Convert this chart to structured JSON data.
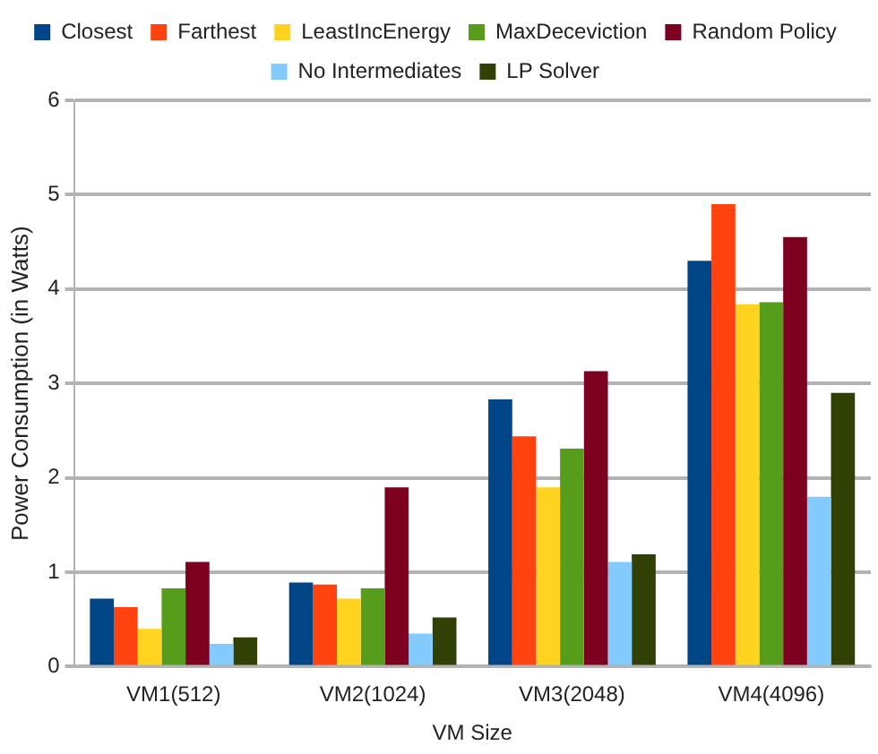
{
  "chart_data": {
    "type": "bar",
    "xlabel": "VM Size",
    "ylabel": "Power Consumption (in Watts)",
    "categories": [
      "VM1(512)",
      "VM2(1024)",
      "VM3(2048)",
      "VM4(4096)"
    ],
    "series": [
      {
        "name": "Closest",
        "color": "#004586",
        "values": [
          0.72,
          0.89,
          2.83,
          4.3
        ]
      },
      {
        "name": "Farthest",
        "color": "#ff420e",
        "values": [
          0.63,
          0.87,
          2.44,
          4.9
        ]
      },
      {
        "name": "LeastIncEnergy",
        "color": "#ffd320",
        "values": [
          0.4,
          0.72,
          1.9,
          3.84
        ]
      },
      {
        "name": "MaxDeceviction",
        "color": "#579d1c",
        "values": [
          0.83,
          0.83,
          2.31,
          3.86
        ]
      },
      {
        "name": "Random Policy",
        "color": "#7e0021",
        "values": [
          1.11,
          1.9,
          3.13,
          4.55
        ]
      },
      {
        "name": "No Intermediates",
        "color": "#83caff",
        "values": [
          0.24,
          0.35,
          1.11,
          1.8
        ]
      },
      {
        "name": "LP Solver",
        "color": "#314004",
        "values": [
          0.31,
          0.52,
          1.19,
          2.9
        ]
      }
    ],
    "ylim": [
      0,
      6
    ],
    "yticks": [
      0,
      1,
      2,
      3,
      4,
      5,
      6
    ],
    "grid": "y",
    "legend": "top"
  }
}
